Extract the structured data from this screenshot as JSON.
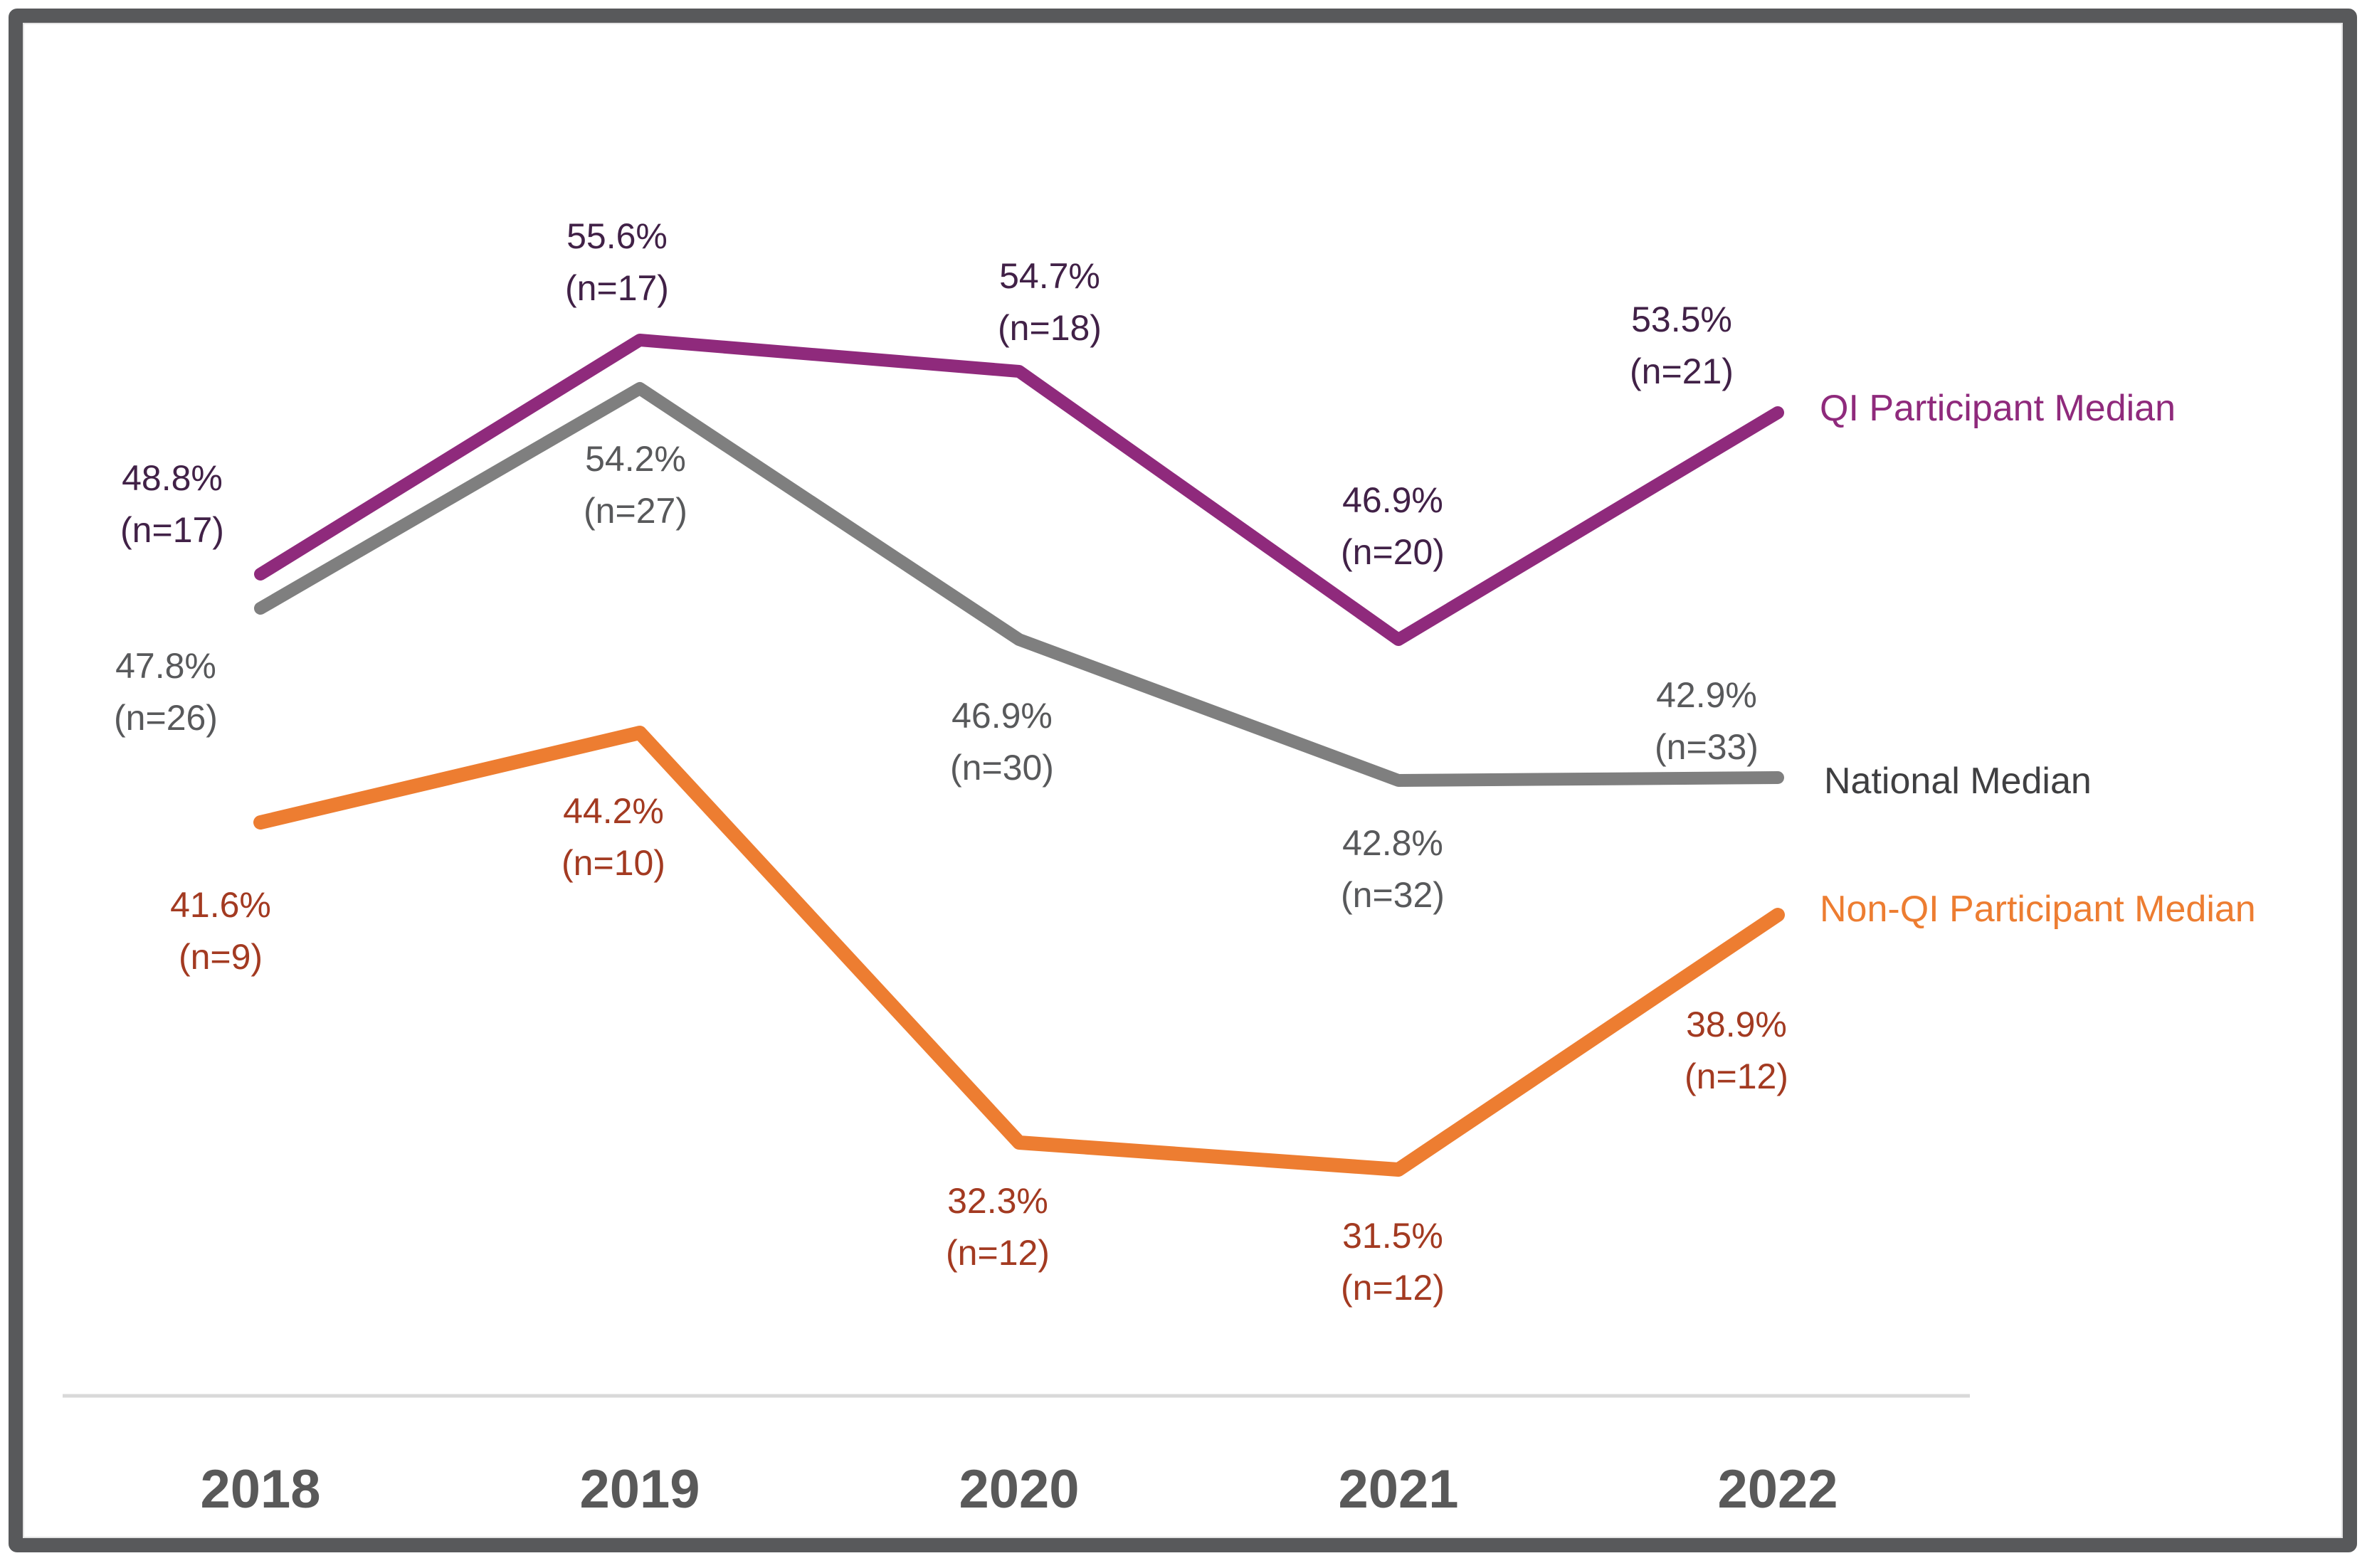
{
  "frame": {
    "border_color": "#58595B",
    "background": "#FFFFFF"
  },
  "chart_data": {
    "type": "line",
    "title": "",
    "xlabel": "",
    "ylabel": "",
    "grid": false,
    "legend_position": "right-of-line-ends",
    "x_axis_line_color": "#D9D9D9",
    "x_tick_color": "#595959",
    "categories": [
      "2018",
      "2019",
      "2020",
      "2021",
      "2022"
    ],
    "series": [
      {
        "name": "QI Participant Median",
        "color": "#8F2A7C",
        "label_color": "#412147",
        "values": [
          48.8,
          55.6,
          54.7,
          46.9,
          53.5
        ],
        "n_values": [
          17,
          17,
          18,
          20,
          21
        ],
        "point_labels": [
          "48.8%",
          "55.6%",
          "54.7%",
          "46.9%",
          "53.5%"
        ],
        "n_labels": [
          "(n=17)",
          "(n=17)",
          "(n=18)",
          "(n=20)",
          "(n=21)"
        ]
      },
      {
        "name": "National Median",
        "color": "#7F7F7F",
        "label_color": "#58595B",
        "values": [
          47.8,
          54.2,
          46.9,
          42.8,
          42.9
        ],
        "n_values": [
          26,
          27,
          30,
          32,
          33
        ],
        "point_labels": [
          "47.8%",
          "54.2%",
          "46.9%",
          "42.8%",
          "42.9%"
        ],
        "n_labels": [
          "(n=26)",
          "(n=27)",
          "(n=30)",
          "(n=32)",
          "(n=33)"
        ]
      },
      {
        "name": "Non-QI Participant Median",
        "color": "#ED7D31",
        "label_color": "#A33A21",
        "values": [
          41.6,
          44.2,
          32.3,
          31.5,
          38.9
        ],
        "n_values": [
          9,
          10,
          12,
          12,
          12
        ],
        "point_labels": [
          "41.6%",
          "44.2%",
          "32.3%",
          "31.5%",
          "38.9%"
        ],
        "n_labels": [
          "(n=9)",
          "(n=10)",
          "(n=12)",
          "(n=12)",
          "(n=12)"
        ]
      }
    ],
    "legend": [
      {
        "label": "QI Participant Median",
        "color": "#8F2A7C"
      },
      {
        "label": "National Median",
        "color": "#3F3F41"
      },
      {
        "label": "Non-QI Participant Median",
        "color": "#ED7D31"
      }
    ]
  }
}
